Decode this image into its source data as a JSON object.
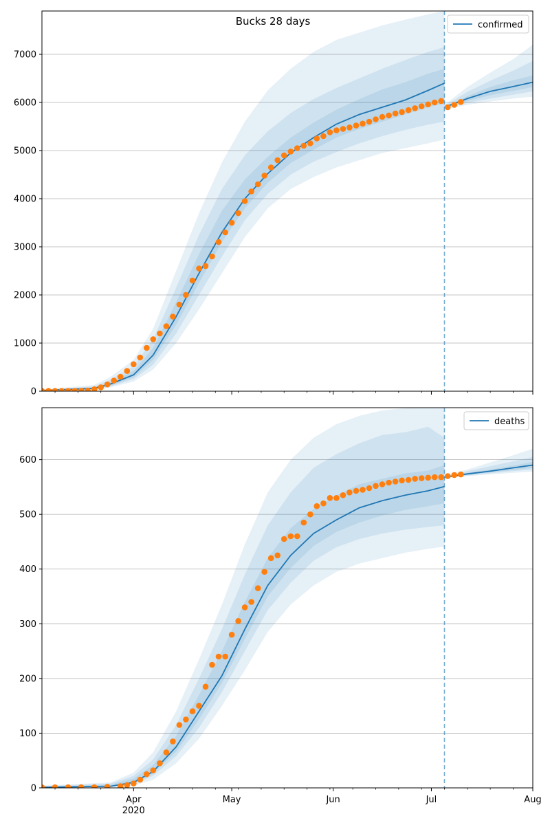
{
  "figure": {
    "suptitle": "Bucks 28 days"
  },
  "chart_data": [
    {
      "type": "line",
      "id": "confirmed",
      "title": "",
      "legend": {
        "label": "confirmed",
        "position": "upper right"
      },
      "x_axis": {
        "type": "date",
        "range": [
          "2020-03-04",
          "2020-08-01"
        ],
        "major_ticks": [
          "2020-04-01",
          "2020-05-01",
          "2020-06-01",
          "2020-07-01",
          "2020-08-01"
        ],
        "tick_labels": [
          "Apr",
          "May",
          "Jun",
          "Jul",
          "Aug"
        ],
        "year_label": "",
        "show_tick_labels": false
      },
      "y_axis": {
        "range": [
          0,
          7900
        ],
        "ticks": [
          0,
          1000,
          2000,
          3000,
          4000,
          5000,
          6000,
          7000
        ],
        "tick_labels": [
          "0",
          "1000",
          "2000",
          "3000",
          "4000",
          "5000",
          "6000",
          "7000"
        ]
      },
      "grid": "horizontal",
      "forecast_start": "2020-07-05",
      "colors": {
        "model": "#1f77b4",
        "observed": "#ff7f0e",
        "band": "#1f77b4"
      },
      "model_line": {
        "dates": [
          "2020-03-04",
          "2020-03-20",
          "2020-03-25",
          "2020-04-01",
          "2020-04-07",
          "2020-04-14",
          "2020-04-21",
          "2020-04-28",
          "2020-05-05",
          "2020-05-12",
          "2020-05-19",
          "2020-05-26",
          "2020-06-02",
          "2020-06-09",
          "2020-06-16",
          "2020-06-23",
          "2020-06-30",
          "2020-07-05"
        ],
        "values": [
          15,
          60,
          150,
          340,
          750,
          1550,
          2450,
          3300,
          4000,
          4520,
          4950,
          5270,
          5550,
          5750,
          5900,
          6050,
          6250,
          6400
        ]
      },
      "forecast_line": {
        "dates": [
          "2020-07-05",
          "2020-07-12",
          "2020-07-19",
          "2020-07-26",
          "2020-08-01"
        ],
        "values": [
          5900,
          6080,
          6230,
          6330,
          6420
        ]
      },
      "bands_fit": {
        "dates": [
          "2020-03-04",
          "2020-03-20",
          "2020-03-25",
          "2020-04-01",
          "2020-04-07",
          "2020-04-14",
          "2020-04-21",
          "2020-04-28",
          "2020-05-05",
          "2020-05-12",
          "2020-05-19",
          "2020-05-26",
          "2020-06-02",
          "2020-06-09",
          "2020-06-16",
          "2020-06-23",
          "2020-06-30",
          "2020-07-05"
        ],
        "lower": [
          [
            0,
            20,
            80,
            200,
            450,
            1000,
            1700,
            2450,
            3200,
            3800,
            4200,
            4450,
            4650,
            4800,
            4950,
            5050,
            5150,
            5230
          ],
          [
            5,
            35,
            100,
            250,
            550,
            1200,
            2000,
            2800,
            3550,
            4100,
            4500,
            4770,
            4970,
            5150,
            5300,
            5430,
            5540,
            5600
          ],
          [
            10,
            45,
            120,
            290,
            650,
            1380,
            2250,
            3100,
            3800,
            4330,
            4740,
            5020,
            5270,
            5450,
            5600,
            5750,
            5900,
            5980
          ]
        ],
        "upper": [
          [
            20,
            80,
            190,
            420,
            900,
            1850,
            2850,
            3750,
            4400,
            4870,
            5270,
            5580,
            5850,
            6070,
            6270,
            6420,
            6600,
            6700
          ],
          [
            25,
            100,
            240,
            520,
            1080,
            2150,
            3250,
            4200,
            4900,
            5400,
            5780,
            6070,
            6300,
            6500,
            6700,
            6880,
            7050,
            7150
          ],
          [
            30,
            130,
            300,
            650,
            1300,
            2500,
            3700,
            4750,
            5600,
            6250,
            6700,
            7050,
            7300,
            7450,
            7600,
            7720,
            7830,
            7900
          ]
        ]
      },
      "bands_forecast": {
        "dates": [
          "2020-07-05",
          "2020-07-12",
          "2020-07-19",
          "2020-07-26",
          "2020-08-01"
        ],
        "lower": [
          [
            5850,
            5950,
            6020,
            6080,
            6120
          ],
          [
            5870,
            5990,
            6080,
            6160,
            6230
          ],
          [
            5890,
            6030,
            6150,
            6240,
            6320
          ]
        ],
        "upper": [
          [
            5910,
            6130,
            6320,
            6460,
            6560
          ],
          [
            5930,
            6220,
            6450,
            6660,
            6860
          ],
          [
            5950,
            6320,
            6620,
            6900,
            7200
          ]
        ]
      },
      "observed_points": {
        "dates": [
          "2020-03-04",
          "2020-03-06",
          "2020-03-08",
          "2020-03-10",
          "2020-03-12",
          "2020-03-14",
          "2020-03-16",
          "2020-03-18",
          "2020-03-20",
          "2020-03-22",
          "2020-03-24",
          "2020-03-26",
          "2020-03-28",
          "2020-03-30",
          "2020-04-01",
          "2020-04-03",
          "2020-04-05",
          "2020-04-07",
          "2020-04-09",
          "2020-04-11",
          "2020-04-13",
          "2020-04-15",
          "2020-04-17",
          "2020-04-19",
          "2020-04-21",
          "2020-04-23",
          "2020-04-25",
          "2020-04-27",
          "2020-04-29",
          "2020-05-01",
          "2020-05-03",
          "2020-05-05",
          "2020-05-07",
          "2020-05-09",
          "2020-05-11",
          "2020-05-13",
          "2020-05-15",
          "2020-05-17",
          "2020-05-19",
          "2020-05-21",
          "2020-05-23",
          "2020-05-25",
          "2020-05-27",
          "2020-05-29",
          "2020-05-31",
          "2020-06-02",
          "2020-06-04",
          "2020-06-06",
          "2020-06-08",
          "2020-06-10",
          "2020-06-12",
          "2020-06-14",
          "2020-06-16",
          "2020-06-18",
          "2020-06-20",
          "2020-06-22",
          "2020-06-24",
          "2020-06-26",
          "2020-06-28",
          "2020-06-30",
          "2020-07-02",
          "2020-07-04",
          "2020-07-06",
          "2020-07-08",
          "2020-07-10"
        ],
        "values": [
          5,
          5,
          5,
          5,
          5,
          5,
          8,
          15,
          40,
          80,
          140,
          220,
          300,
          420,
          560,
          700,
          900,
          1080,
          1200,
          1350,
          1550,
          1800,
          2000,
          2300,
          2550,
          2600,
          2800,
          3100,
          3300,
          3500,
          3700,
          3950,
          4150,
          4300,
          4480,
          4650,
          4800,
          4900,
          4980,
          5050,
          5100,
          5150,
          5250,
          5300,
          5380,
          5420,
          5450,
          5480,
          5520,
          5560,
          5600,
          5650,
          5700,
          5730,
          5770,
          5800,
          5840,
          5880,
          5920,
          5960,
          6000,
          6030,
          5900,
          5950,
          6010
        ]
      }
    },
    {
      "type": "line",
      "id": "deaths",
      "title": "",
      "legend": {
        "label": "deaths",
        "position": "upper right"
      },
      "x_axis": {
        "type": "date",
        "range": [
          "2020-03-04",
          "2020-08-01"
        ],
        "major_ticks": [
          "2020-04-01",
          "2020-05-01",
          "2020-06-01",
          "2020-07-01",
          "2020-08-01"
        ],
        "tick_labels": [
          "Apr",
          "May",
          "Jun",
          "Jul",
          "Aug"
        ],
        "year_label": "2020",
        "show_tick_labels": true
      },
      "y_axis": {
        "range": [
          0,
          695
        ],
        "ticks": [
          0,
          100,
          200,
          300,
          400,
          500,
          600
        ],
        "tick_labels": [
          "0",
          "100",
          "200",
          "300",
          "400",
          "500",
          "600"
        ]
      },
      "grid": "horizontal",
      "forecast_start": "2020-07-05",
      "colors": {
        "model": "#1f77b4",
        "observed": "#ff7f0e",
        "band": "#1f77b4"
      },
      "model_line": {
        "dates": [
          "2020-03-04",
          "2020-03-25",
          "2020-04-01",
          "2020-04-07",
          "2020-04-14",
          "2020-04-21",
          "2020-04-28",
          "2020-05-05",
          "2020-05-12",
          "2020-05-19",
          "2020-05-26",
          "2020-06-02",
          "2020-06-09",
          "2020-06-16",
          "2020-06-23",
          "2020-06-30",
          "2020-07-05"
        ],
        "values": [
          1,
          3,
          10,
          30,
          75,
          140,
          205,
          290,
          370,
          425,
          465,
          490,
          512,
          525,
          535,
          543,
          551
        ]
      },
      "forecast_line": {
        "dates": [
          "2020-07-05",
          "2020-07-12",
          "2020-07-19",
          "2020-07-26",
          "2020-08-01"
        ],
        "values": [
          568,
          574,
          579,
          585,
          590
        ]
      },
      "bands_fit": {
        "dates": [
          "2020-03-04",
          "2020-03-25",
          "2020-04-01",
          "2020-04-07",
          "2020-04-14",
          "2020-04-21",
          "2020-04-28",
          "2020-05-05",
          "2020-05-12",
          "2020-05-19",
          "2020-05-26",
          "2020-06-02",
          "2020-06-09",
          "2020-06-16",
          "2020-06-23",
          "2020-06-30",
          "2020-07-05"
        ],
        "lower": [
          [
            0,
            1,
            4,
            15,
            45,
            90,
            150,
            215,
            285,
            335,
            370,
            395,
            410,
            420,
            430,
            437,
            441
          ],
          [
            0,
            2,
            7,
            22,
            58,
            110,
            175,
            250,
            325,
            375,
            415,
            440,
            455,
            465,
            472,
            477,
            480
          ],
          [
            0,
            2,
            8,
            26,
            66,
            125,
            192,
            272,
            350,
            402,
            442,
            468,
            485,
            498,
            508,
            515,
            520
          ]
        ],
        "upper": [
          [
            2,
            6,
            17,
            42,
            95,
            170,
            250,
            340,
            420,
            475,
            510,
            535,
            555,
            565,
            575,
            580,
            590
          ],
          [
            3,
            8,
            22,
            52,
            115,
            200,
            290,
            390,
            480,
            540,
            585,
            610,
            630,
            645,
            650,
            660,
            640
          ],
          [
            4,
            10,
            28,
            65,
            140,
            235,
            335,
            445,
            540,
            600,
            640,
            665,
            680,
            690,
            694,
            695,
            695
          ]
        ]
      },
      "bands_forecast": {
        "dates": [
          "2020-07-05",
          "2020-07-12",
          "2020-07-19",
          "2020-07-26",
          "2020-08-01"
        ],
        "lower": [
          [
            566,
            570,
            573,
            576,
            578
          ],
          [
            567,
            571,
            575,
            579,
            582
          ],
          [
            567,
            572,
            577,
            581,
            585
          ]
        ],
        "upper": [
          [
            569,
            576,
            582,
            589,
            596
          ],
          [
            570,
            579,
            588,
            597,
            605
          ],
          [
            571,
            582,
            595,
            608,
            620
          ]
        ]
      },
      "observed_points": {
        "dates": [
          "2020-03-04",
          "2020-03-08",
          "2020-03-12",
          "2020-03-16",
          "2020-03-20",
          "2020-03-24",
          "2020-03-28",
          "2020-03-30",
          "2020-04-01",
          "2020-04-03",
          "2020-04-05",
          "2020-04-07",
          "2020-04-09",
          "2020-04-11",
          "2020-04-13",
          "2020-04-15",
          "2020-04-17",
          "2020-04-19",
          "2020-04-21",
          "2020-04-23",
          "2020-04-25",
          "2020-04-27",
          "2020-04-29",
          "2020-05-01",
          "2020-05-03",
          "2020-05-05",
          "2020-05-07",
          "2020-05-09",
          "2020-05-11",
          "2020-05-13",
          "2020-05-15",
          "2020-05-17",
          "2020-05-19",
          "2020-05-21",
          "2020-05-23",
          "2020-05-25",
          "2020-05-27",
          "2020-05-29",
          "2020-05-31",
          "2020-06-02",
          "2020-06-04",
          "2020-06-06",
          "2020-06-08",
          "2020-06-10",
          "2020-06-12",
          "2020-06-14",
          "2020-06-16",
          "2020-06-18",
          "2020-06-20",
          "2020-06-22",
          "2020-06-24",
          "2020-06-26",
          "2020-06-28",
          "2020-06-30",
          "2020-07-02",
          "2020-07-04",
          "2020-07-06",
          "2020-07-08",
          "2020-07-10"
        ],
        "values": [
          1,
          1,
          1,
          1,
          1,
          2,
          3,
          5,
          8,
          15,
          25,
          32,
          45,
          65,
          85,
          115,
          125,
          140,
          150,
          185,
          225,
          240,
          240,
          280,
          305,
          330,
          340,
          365,
          395,
          420,
          425,
          455,
          460,
          460,
          485,
          500,
          515,
          520,
          530,
          530,
          535,
          540,
          543,
          545,
          548,
          552,
          555,
          558,
          560,
          562,
          563,
          565,
          566,
          567,
          568,
          568,
          570,
          572,
          573
        ]
      }
    }
  ]
}
